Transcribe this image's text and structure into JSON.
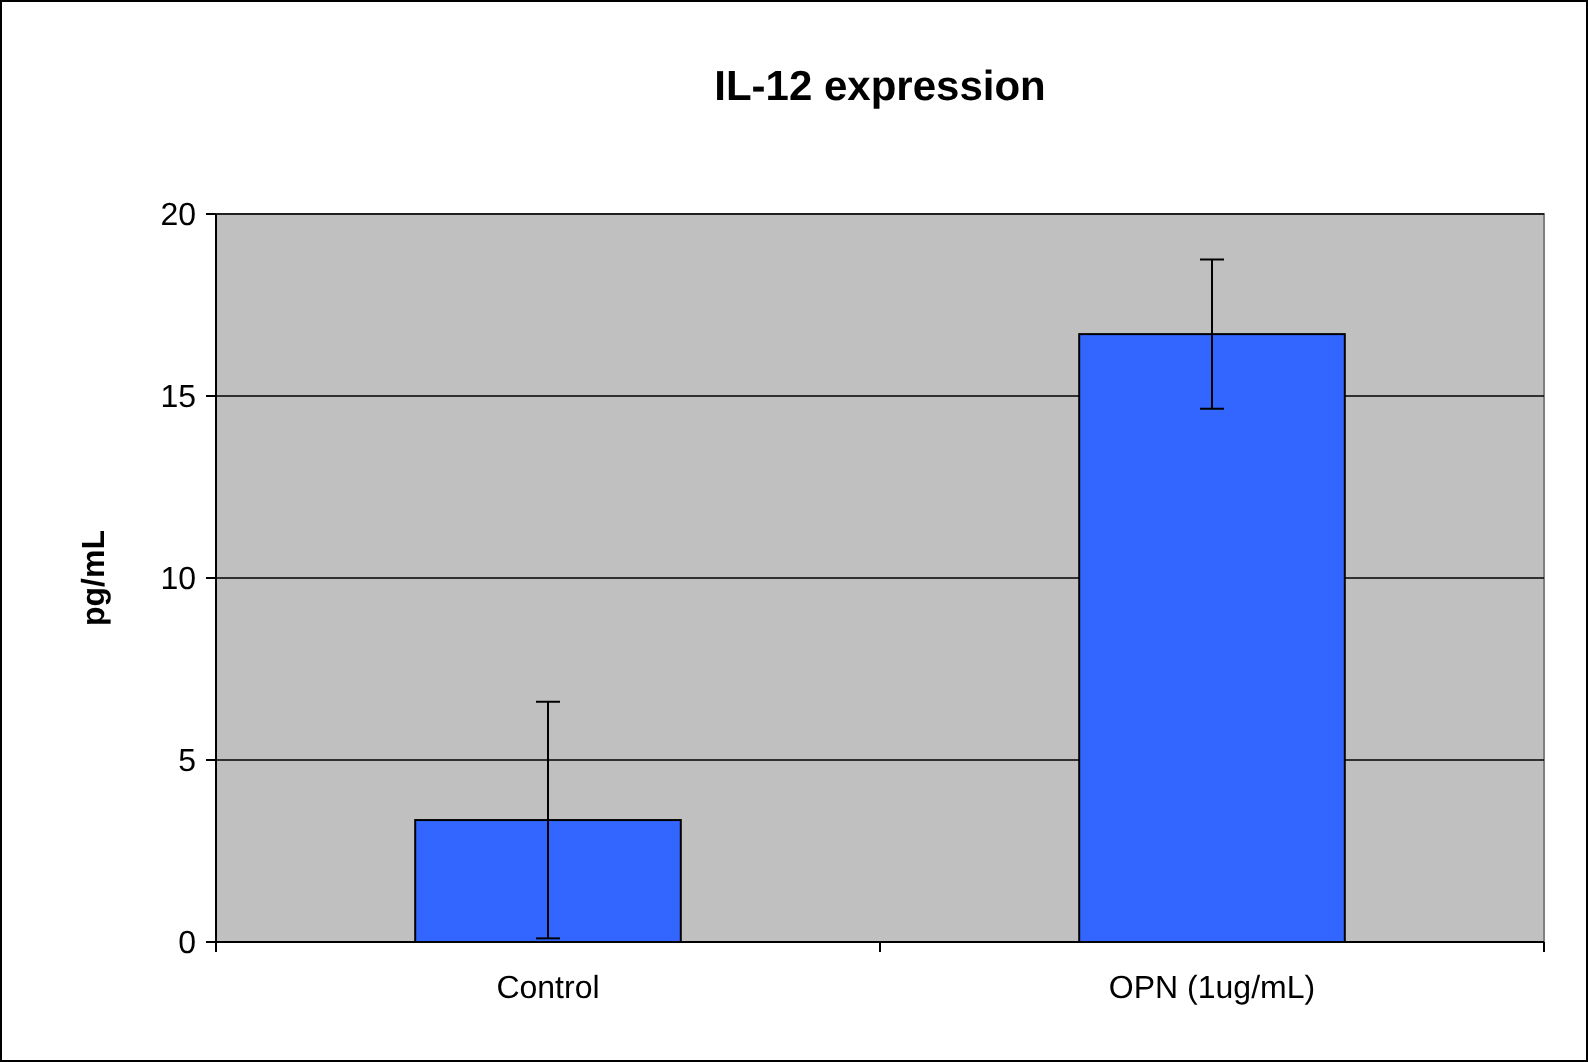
{
  "chart_data": {
    "type": "bar",
    "title": "IL-12 expression",
    "ylabel": "pg/mL",
    "categories": [
      "Control",
      "OPN (1ug/mL)"
    ],
    "values": [
      3.35,
      16.7
    ],
    "errors": [
      3.25,
      2.05
    ],
    "color": "#3366ff",
    "ylim": [
      0,
      20
    ],
    "yticks": [
      0,
      5,
      10,
      15,
      20
    ],
    "grid": "y"
  }
}
